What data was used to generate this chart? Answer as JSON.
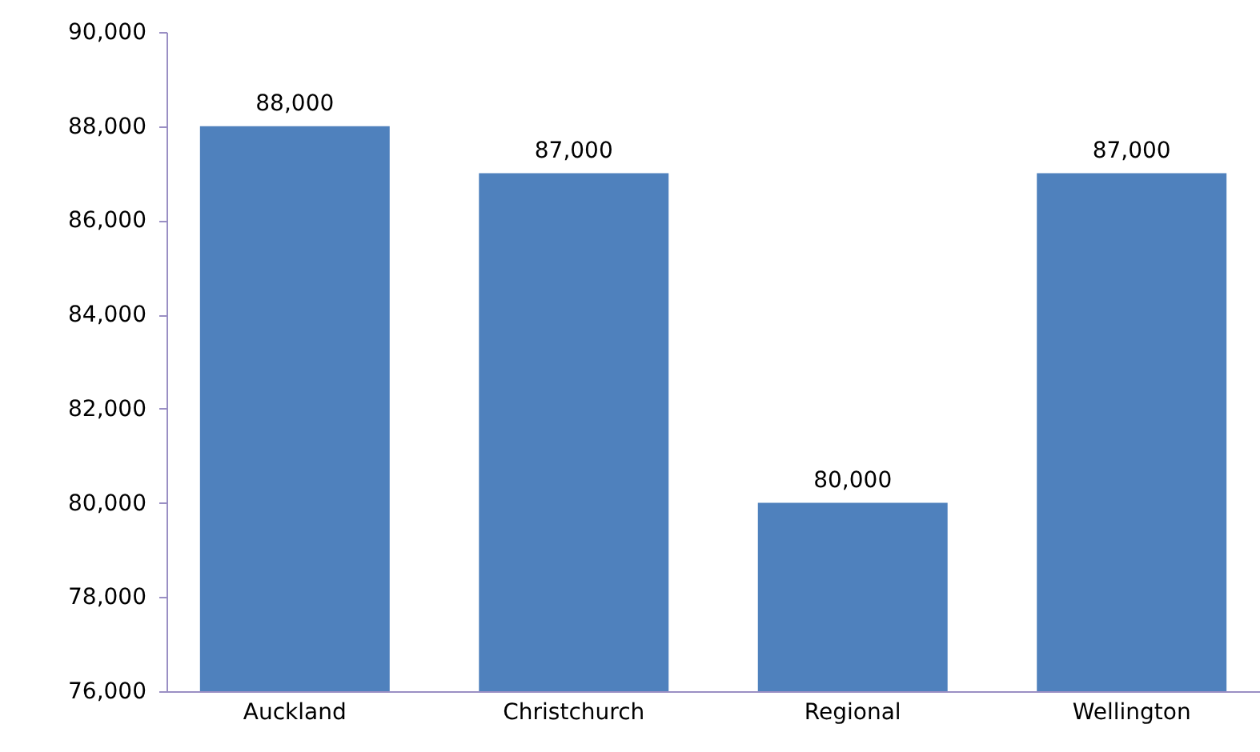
{
  "chart_data": {
    "type": "bar",
    "categories": [
      "Auckland",
      "Christchurch",
      "Regional",
      "Wellington"
    ],
    "values": [
      88000,
      87000,
      80000,
      87000
    ],
    "value_labels": [
      "88,000",
      "87,000",
      "80,000",
      "87,000"
    ],
    "color": "#4f81bd",
    "ylim": [
      76000,
      90000
    ],
    "yticks": [
      {
        "value": 76000,
        "label": "76,000"
      },
      {
        "value": 78000,
        "label": "78,000"
      },
      {
        "value": 80000,
        "label": "80,000"
      },
      {
        "value": 82000,
        "label": "82,000"
      },
      {
        "value": 84000,
        "label": "84,000"
      },
      {
        "value": 86000,
        "label": "86,000"
      },
      {
        "value": 88000,
        "label": "88,000"
      },
      {
        "value": 90000,
        "label": "90,000"
      }
    ]
  }
}
